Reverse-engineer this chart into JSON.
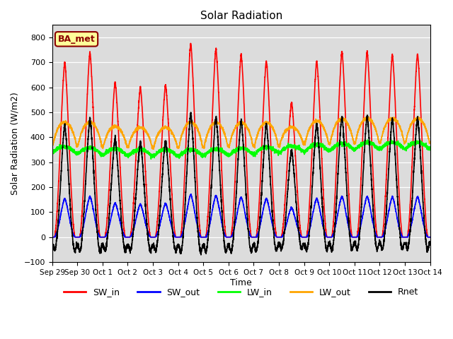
{
  "title": "Solar Radiation",
  "xlabel": "Time",
  "ylabel": "Solar Radiation (W/m2)",
  "ylim": [
    -100,
    850
  ],
  "yticks": [
    -100,
    0,
    100,
    200,
    300,
    400,
    500,
    600,
    700,
    800
  ],
  "plot_bg_color": "#dcdcdc",
  "annotation_text": "BA_met",
  "annotation_color": "#8B0000",
  "annotation_bg": "#FFFF99",
  "sw_in_peaks": [
    700,
    740,
    620,
    600,
    610,
    775,
    755,
    730,
    705,
    540,
    705,
    745,
    745,
    730,
    735
  ],
  "series": {
    "SW_in": {
      "color": "red",
      "lw": 1.2
    },
    "SW_out": {
      "color": "blue",
      "lw": 1.2
    },
    "LW_in": {
      "color": "lime",
      "lw": 1.2
    },
    "LW_out": {
      "color": "orange",
      "lw": 1.2
    },
    "Rnet": {
      "color": "black",
      "lw": 1.2
    }
  },
  "x_tick_labels": [
    "Sep 29",
    "Sep 30",
    "Oct 1",
    "Oct 2",
    "Oct 3",
    "Oct 4",
    "Oct 5",
    "Oct 6",
    "Oct 7",
    "Oct 8",
    "Oct 9",
    "Oct 10",
    "Oct 11",
    "Oct 12",
    "Oct 13",
    "Oct 14"
  ],
  "legend_ncol": 5,
  "pts_per_day": 288
}
